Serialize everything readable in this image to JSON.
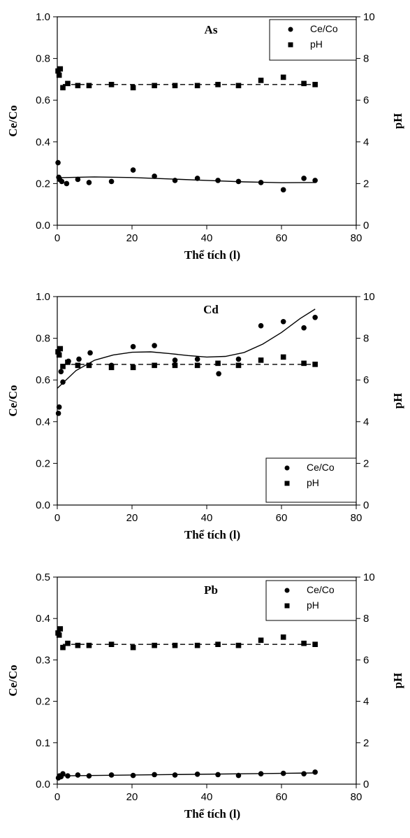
{
  "chart_data": [
    {
      "type": "scatter",
      "title": "As",
      "xlabel": "Thể tích (l)",
      "ylabel": "Ce/Co",
      "y2label": "pH",
      "xlim": [
        0,
        80
      ],
      "ylim": [
        0,
        1.0
      ],
      "y2lim": [
        0,
        10
      ],
      "xticks": [
        "0",
        "20",
        "40",
        "60",
        "80"
      ],
      "yticks": [
        "0.0",
        "0.2",
        "0.4",
        "0.6",
        "0.8",
        "1.0"
      ],
      "y2ticks": [
        "0",
        "2",
        "4",
        "6",
        "8",
        "10"
      ],
      "grid": false,
      "legend": "top-right",
      "series": [
        {
          "name": "Ce/Co",
          "axis": "left",
          "marker": "circle",
          "trend": "solid",
          "x": [
            0.2,
            0.4,
            0.6,
            1.2,
            2.5,
            5.5,
            8.5,
            14.5,
            20.3,
            26,
            31.5,
            37.5,
            43,
            48.5,
            54.5,
            60.5,
            66,
            69
          ],
          "y": [
            0.3,
            0.23,
            0.22,
            0.21,
            0.2,
            0.22,
            0.205,
            0.21,
            0.265,
            0.235,
            0.215,
            0.225,
            0.215,
            0.21,
            0.205,
            0.17,
            0.225,
            0.215
          ],
          "trend_x": [
            0,
            10,
            20,
            30,
            40,
            50,
            60,
            69
          ],
          "trend_y": [
            0.228,
            0.232,
            0.229,
            0.222,
            0.215,
            0.208,
            0.204,
            0.205
          ]
        },
        {
          "name": "pH",
          "axis": "right",
          "marker": "square",
          "trend": "dashed",
          "x": [
            0.2,
            0.5,
            0.8,
            1.5,
            2.8,
            5.5,
            8.5,
            14.5,
            20.3,
            26,
            31.5,
            37.5,
            43,
            48.5,
            54.5,
            60.5,
            66,
            69
          ],
          "y": [
            7.4,
            7.2,
            7.5,
            6.6,
            6.8,
            6.7,
            6.7,
            6.75,
            6.6,
            6.7,
            6.7,
            6.7,
            6.75,
            6.7,
            6.95,
            7.1,
            6.8,
            6.75
          ],
          "trend_x": [
            1.5,
            69
          ],
          "trend_y": [
            6.75,
            6.75
          ]
        }
      ]
    },
    {
      "type": "scatter",
      "title": "Cd",
      "xlabel": "Thể tích (l)",
      "ylabel": "Ce/Co",
      "y2label": "pH",
      "xlim": [
        0,
        80
      ],
      "ylim": [
        0,
        1.0
      ],
      "y2lim": [
        0,
        10
      ],
      "xticks": [
        "0",
        "20",
        "40",
        "60",
        "80"
      ],
      "yticks": [
        "0.0",
        "0.2",
        "0.4",
        "0.6",
        "0.8",
        "1.0"
      ],
      "y2ticks": [
        "0",
        "2",
        "4",
        "6",
        "8",
        "10"
      ],
      "grid": false,
      "legend": "bottom-right",
      "series": [
        {
          "name": "Ce/Co",
          "axis": "left",
          "marker": "circle",
          "trend": "solid",
          "x": [
            0.3,
            0.5,
            1.0,
            1.5,
            3.0,
            5.8,
            8.8,
            14.5,
            20.3,
            26,
            31.5,
            37.5,
            43.2,
            48.5,
            54.5,
            60.5,
            66,
            69
          ],
          "y": [
            0.44,
            0.47,
            0.64,
            0.59,
            0.69,
            0.7,
            0.73,
            0.67,
            0.76,
            0.765,
            0.695,
            0.7,
            0.63,
            0.7,
            0.86,
            0.88,
            0.85,
            0.9
          ],
          "trend_x": [
            0,
            5,
            10,
            15,
            20,
            25,
            30,
            35,
            40,
            45,
            50,
            55,
            60,
            65,
            69
          ],
          "trend_y": [
            0.56,
            0.645,
            0.695,
            0.72,
            0.733,
            0.735,
            0.727,
            0.717,
            0.71,
            0.713,
            0.732,
            0.772,
            0.828,
            0.895,
            0.94
          ]
        },
        {
          "name": "pH",
          "axis": "right",
          "marker": "square",
          "trend": "dashed",
          "x": [
            0.2,
            0.5,
            0.8,
            1.5,
            2.8,
            5.5,
            8.5,
            14.5,
            20.3,
            26,
            31.5,
            37.5,
            43,
            48.5,
            54.5,
            60.5,
            66,
            69
          ],
          "y": [
            7.35,
            7.2,
            7.5,
            6.65,
            6.85,
            6.7,
            6.7,
            6.6,
            6.6,
            6.7,
            6.7,
            6.7,
            6.8,
            6.7,
            6.95,
            7.1,
            6.8,
            6.75
          ],
          "trend_x": [
            1.5,
            69
          ],
          "trend_y": [
            6.75,
            6.75
          ]
        }
      ]
    },
    {
      "type": "scatter",
      "title": "Pb",
      "xlabel": "Thể tích (l)",
      "ylabel": "Ce/Co",
      "y2label": "pH",
      "xlim": [
        0,
        80
      ],
      "ylim": [
        0,
        0.5
      ],
      "y2lim": [
        0,
        10
      ],
      "xticks": [
        "0",
        "20",
        "40",
        "60",
        "80"
      ],
      "yticks": [
        "0.0",
        "0.1",
        "0.2",
        "0.3",
        "0.4",
        "0.5"
      ],
      "y2ticks": [
        "0",
        "2",
        "4",
        "6",
        "8",
        "10"
      ],
      "grid": false,
      "legend": "top-right",
      "series": [
        {
          "name": "Ce/Co",
          "axis": "left",
          "marker": "circle",
          "trend": "solid",
          "x": [
            0.3,
            0.6,
            1.0,
            1.5,
            2.8,
            5.5,
            8.5,
            14.5,
            20.3,
            26,
            31.5,
            37.5,
            43,
            48.5,
            54.5,
            60.5,
            66,
            69
          ],
          "y": [
            0.015,
            0.02,
            0.018,
            0.025,
            0.02,
            0.022,
            0.02,
            0.022,
            0.021,
            0.023,
            0.022,
            0.024,
            0.023,
            0.021,
            0.025,
            0.026,
            0.025,
            0.029
          ],
          "trend_x": [
            0,
            69
          ],
          "trend_y": [
            0.02,
            0.027
          ]
        },
        {
          "name": "pH",
          "axis": "right",
          "marker": "square",
          "trend": "dashed",
          "x": [
            0.2,
            0.5,
            0.8,
            1.5,
            2.8,
            5.5,
            8.5,
            14.5,
            20.3,
            26,
            31.5,
            37.5,
            43,
            48.5,
            54.5,
            60.5,
            66,
            69
          ],
          "y": [
            7.3,
            7.2,
            7.5,
            6.6,
            6.8,
            6.7,
            6.7,
            6.75,
            6.6,
            6.7,
            6.7,
            6.7,
            6.75,
            6.7,
            6.95,
            7.1,
            6.8,
            6.75
          ],
          "trend_x": [
            1.5,
            69
          ],
          "trend_y": [
            6.75,
            6.75
          ]
        }
      ]
    }
  ]
}
